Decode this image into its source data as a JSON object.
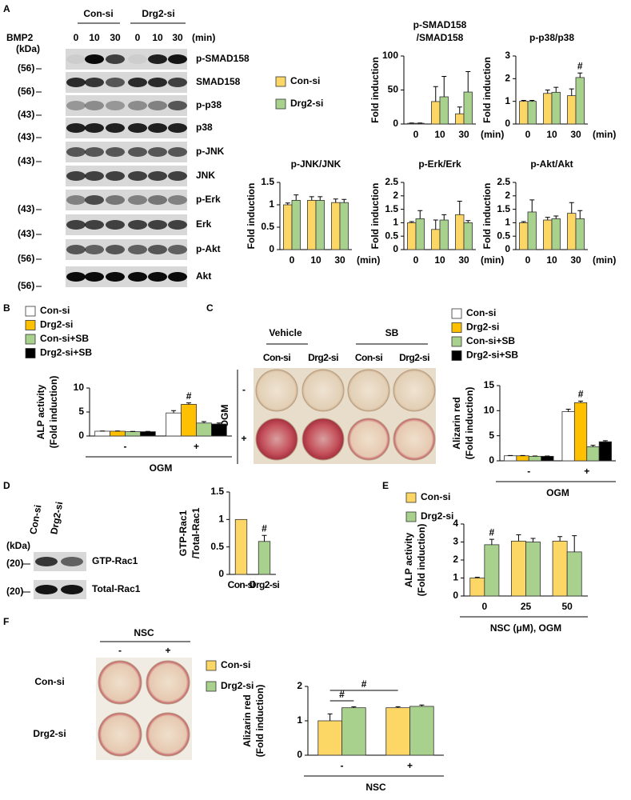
{
  "panels": [
    "A",
    "B",
    "C",
    "D",
    "E",
    "F"
  ],
  "blot_a": {
    "groups": [
      "Con-si",
      "Drg2-si"
    ],
    "treatment": "BMP2",
    "lanes": [
      "0",
      "10",
      "30",
      "0",
      "10",
      "30"
    ],
    "time_unit": "(min)",
    "mw_unit": "(kDa)",
    "rows": [
      {
        "label": "p-SMAD158",
        "mw": "(56)"
      },
      {
        "label": "SMAD158",
        "mw": "(56)"
      },
      {
        "label": "p-p38",
        "mw": "(43)"
      },
      {
        "label": "p38",
        "mw": "(43)"
      },
      {
        "label": "p-JNK",
        "mw": "(43)"
      },
      {
        "label": "JNK",
        "mw": null
      },
      {
        "label": "p-Erk",
        "mw": "(43)"
      },
      {
        "label": "Erk",
        "mw": "(43)"
      },
      {
        "label": "p-Akt",
        "mw": "(56)"
      },
      {
        "label": "Akt",
        "mw": "(56)"
      }
    ]
  },
  "dish_c": {
    "groups": [
      "Vehicle",
      "SB"
    ],
    "columns": [
      "Con-si",
      "Drg2-si",
      "Con-si",
      "Drg2-si"
    ],
    "row_title": "OGM",
    "rows": [
      "-",
      "+"
    ]
  },
  "blot_d": {
    "lanes": [
      "Con-si",
      "Drg2-si"
    ],
    "mw_unit": "(kDa)",
    "rows": [
      {
        "label": "GTP-Rac1",
        "mw": "(20)"
      },
      {
        "label": "Total-Rac1",
        "mw": "(20)"
      }
    ]
  },
  "dish_f": {
    "title": "NSC",
    "columns": [
      "-",
      "+"
    ],
    "rows": [
      "Con-si",
      "Drg2-si"
    ]
  },
  "chart_data": [
    {
      "type": "bar",
      "title": [
        "p-SMAD158",
        "/SMAD158"
      ],
      "ylabel": [
        "Fold induction"
      ],
      "categories": [
        "0",
        "10",
        "30"
      ],
      "x_unit": "(min)",
      "ylim": [
        0,
        100
      ],
      "yticks": [
        0,
        50,
        100
      ],
      "legend": true,
      "series": [
        {
          "name": "Con-si",
          "color": "#fdd766",
          "values": [
            1,
            33,
            15
          ],
          "errors": [
            0.5,
            22,
            10
          ]
        },
        {
          "name": "Drg2-si",
          "color": "#a9d18e",
          "values": [
            1,
            40,
            47
          ],
          "errors": [
            0.5,
            30,
            30
          ]
        }
      ]
    },
    {
      "type": "bar",
      "title": [
        "p-p38/p38"
      ],
      "ylabel": [
        "Fold induction"
      ],
      "categories": [
        "0",
        "10",
        "30"
      ],
      "x_unit": "(min)",
      "ylim": [
        0,
        3
      ],
      "yticks": [
        0,
        1,
        2,
        3
      ],
      "series": [
        {
          "name": "Con-si",
          "color": "#fdd766",
          "values": [
            1,
            1.35,
            1.25
          ],
          "errors": [
            0.04,
            0.15,
            0.3
          ]
        },
        {
          "name": "Drg2-si",
          "color": "#a9d18e",
          "values": [
            1,
            1.4,
            2.05
          ],
          "errors": [
            0.04,
            0.22,
            0.2
          ],
          "sig": [
            null,
            null,
            "#"
          ]
        }
      ]
    },
    {
      "type": "bar",
      "title": [
        "p-JNK/JNK"
      ],
      "ylabel": [
        "Fold induction"
      ],
      "categories": [
        "0",
        "10",
        "30"
      ],
      "x_unit": "(min)",
      "ylim": [
        0,
        1.5
      ],
      "yticks": [
        0,
        0.5,
        1,
        1.5
      ],
      "series": [
        {
          "name": "Con-si",
          "color": "#fdd766",
          "values": [
            1,
            1.1,
            1.05
          ],
          "errors": [
            0.04,
            0.08,
            0.08
          ]
        },
        {
          "name": "Drg2-si",
          "color": "#a9d18e",
          "values": [
            1.1,
            1.1,
            1.05
          ],
          "errors": [
            0.12,
            0.08,
            0.07
          ]
        }
      ]
    },
    {
      "type": "bar",
      "title": [
        "p-Erk/Erk"
      ],
      "ylabel": [
        "Fold induction"
      ],
      "categories": [
        "0",
        "10",
        "30"
      ],
      "x_unit": "(min)",
      "ylim": [
        0,
        2.5
      ],
      "yticks": [
        0,
        0.5,
        1,
        1.5,
        2,
        2.5
      ],
      "series": [
        {
          "name": "Con-si",
          "color": "#fdd766",
          "values": [
            1,
            0.75,
            1.3
          ],
          "errors": [
            0.04,
            0.35,
            0.5
          ]
        },
        {
          "name": "Drg2-si",
          "color": "#a9d18e",
          "values": [
            1.15,
            1.1,
            1.0
          ],
          "errors": [
            0.3,
            0.2,
            0.08
          ]
        }
      ]
    },
    {
      "type": "bar",
      "title": [
        "p-Akt/Akt"
      ],
      "ylabel": [
        "Fold induction"
      ],
      "categories": [
        "0",
        "10",
        "30"
      ],
      "x_unit": "(min)",
      "ylim": [
        0,
        2.5
      ],
      "yticks": [
        0,
        0.5,
        1,
        1.5,
        2,
        2.5
      ],
      "series": [
        {
          "name": "Con-si",
          "color": "#fdd766",
          "values": [
            1,
            1.1,
            1.35
          ],
          "errors": [
            0.04,
            0.1,
            0.4
          ]
        },
        {
          "name": "Drg2-si",
          "color": "#a9d18e",
          "values": [
            1.4,
            1.15,
            1.15
          ],
          "errors": [
            0.45,
            0.1,
            0.3
          ]
        }
      ]
    },
    {
      "type": "bar",
      "ylabel": [
        "ALP activity",
        "(Fold induction)"
      ],
      "categories": [
        "-",
        "+"
      ],
      "xlabel": "OGM",
      "ylim": [
        0,
        10
      ],
      "yticks": [
        0,
        5,
        10
      ],
      "legend": true,
      "series": [
        {
          "name": "Con-si",
          "color": "#ffffff",
          "values": [
            1,
            4.8
          ],
          "errors": [
            0.05,
            0.5
          ]
        },
        {
          "name": "Drg2-si",
          "color": "#ffc000",
          "values": [
            1,
            6.6
          ],
          "errors": [
            0.05,
            0.3
          ],
          "sig": [
            null,
            "#"
          ]
        },
        {
          "name": "Con-si+SB",
          "color": "#a9d18e",
          "values": [
            0.9,
            2.7
          ],
          "errors": [
            0.05,
            0.3
          ]
        },
        {
          "name": "Drg2-si+SB",
          "color": "#000000",
          "values": [
            0.9,
            2.5
          ],
          "errors": [
            0.05,
            0.2
          ]
        }
      ]
    },
    {
      "type": "bar",
      "ylabel": [
        "Alizarin red",
        "(Fold induction)"
      ],
      "categories": [
        "-",
        "+"
      ],
      "xlabel": "OGM",
      "ylim": [
        0,
        15
      ],
      "yticks": [
        0,
        5,
        10,
        15
      ],
      "legend": true,
      "series": [
        {
          "name": "Con-si",
          "color": "#ffffff",
          "values": [
            1,
            9.8
          ],
          "errors": [
            0.05,
            0.5
          ]
        },
        {
          "name": "Drg2-si",
          "color": "#ffc000",
          "values": [
            1,
            11.6
          ],
          "errors": [
            0.05,
            0.3
          ],
          "sig": [
            null,
            "#"
          ]
        },
        {
          "name": "Con-si+SB",
          "color": "#a9d18e",
          "values": [
            0.9,
            2.8
          ],
          "errors": [
            0.05,
            0.3
          ]
        },
        {
          "name": "Drg2-si+SB",
          "color": "#000000",
          "values": [
            0.9,
            3.8
          ],
          "errors": [
            0.05,
            0.2
          ]
        }
      ]
    },
    {
      "type": "bar",
      "ylabel": [
        "GTP-Rac1",
        "/Total-Rac1"
      ],
      "categories": [
        "Con-si",
        "Drg2-si"
      ],
      "ylim": [
        0,
        1.5
      ],
      "yticks": [
        0,
        0.5,
        1,
        1.5
      ],
      "values": [
        1,
        0.6
      ],
      "errors": [
        null,
        0.11
      ],
      "colors": [
        "#fdd766",
        "#a9d18e"
      ],
      "sig": [
        null,
        "#"
      ]
    },
    {
      "type": "bar",
      "ylabel": [
        "ALP activity",
        "(Fold induction)"
      ],
      "categories": [
        "0",
        "25",
        "50"
      ],
      "xlabel": "NSC (μM), OGM",
      "ylim": [
        0,
        4
      ],
      "yticks": [
        0,
        1,
        2,
        3,
        4
      ],
      "legend": true,
      "series": [
        {
          "name": "Con-si",
          "color": "#fdd766",
          "values": [
            1,
            3.05,
            3.05
          ],
          "errors": [
            0.04,
            0.35,
            0.25
          ]
        },
        {
          "name": "Drg2-si",
          "color": "#a9d18e",
          "values": [
            2.85,
            3.0,
            2.45
          ],
          "errors": [
            0.3,
            0.2,
            0.9
          ],
          "sig": [
            "#",
            null,
            null
          ]
        }
      ]
    },
    {
      "type": "bar",
      "ylabel": [
        "Alizarin red",
        "(Fold induction)"
      ],
      "categories": [
        "-",
        "+"
      ],
      "xlabel": "NSC",
      "ylim": [
        0,
        2
      ],
      "yticks": [
        0,
        1,
        2
      ],
      "legend": true,
      "brackets": [
        "#",
        "#"
      ],
      "series": [
        {
          "name": "Con-si",
          "color": "#fdd766",
          "values": [
            1,
            1.38
          ],
          "errors": [
            0.2,
            0.03
          ]
        },
        {
          "name": "Drg2-si",
          "color": "#a9d18e",
          "values": [
            1.38,
            1.42
          ],
          "errors": [
            0.03,
            0.04
          ]
        }
      ]
    }
  ]
}
